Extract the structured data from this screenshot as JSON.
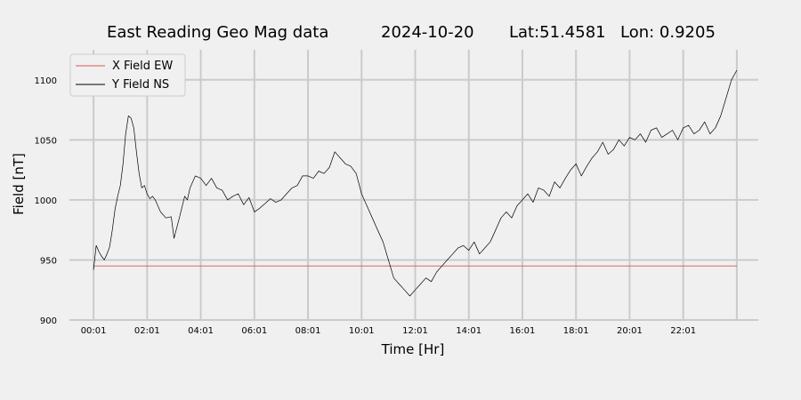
{
  "chart_data": {
    "type": "line",
    "title_parts": [
      "East Reading Geo Mag data",
      "2024-10-20",
      "Lat:51.4581",
      "Lon: 0.9205"
    ],
    "xlabel": "Time  [Hr]",
    "ylabel": "Field  [nT]",
    "xlim": [
      -0.9,
      24.8
    ],
    "ylim": [
      900,
      1125
    ],
    "x_ticks": [
      0,
      2,
      4,
      6,
      8,
      10,
      12,
      14,
      16,
      18,
      20,
      22
    ],
    "x_tick_labels": [
      "00:01",
      "02:01",
      "04:01",
      "06:01",
      "08:01",
      "10:01",
      "12:01",
      "14:01",
      "16:01",
      "18:01",
      "20:01",
      "22:01"
    ],
    "y_ticks": [
      900,
      950,
      1000,
      1050,
      1100
    ],
    "y_tick_labels": [
      "900",
      "950",
      "1000",
      "1050",
      "1100"
    ],
    "grid": true,
    "legend_position": "top-left",
    "series": [
      {
        "name": "X Field EW",
        "color": "#d9534f",
        "x": [
          0,
          24
        ],
        "y": [
          945,
          945
        ]
      },
      {
        "name": "Y Field NS",
        "color": "#000000",
        "x": [
          0,
          0.1,
          0.2,
          0.3,
          0.4,
          0.5,
          0.6,
          0.7,
          0.8,
          0.9,
          1.0,
          1.1,
          1.2,
          1.3,
          1.4,
          1.5,
          1.6,
          1.7,
          1.8,
          1.9,
          2.0,
          2.1,
          2.2,
          2.3,
          2.5,
          2.7,
          2.9,
          3.0,
          3.2,
          3.4,
          3.5,
          3.6,
          3.7,
          3.8,
          4.0,
          4.2,
          4.4,
          4.6,
          4.8,
          5.0,
          5.2,
          5.4,
          5.6,
          5.8,
          6.0,
          6.2,
          6.4,
          6.6,
          6.8,
          7.0,
          7.2,
          7.4,
          7.6,
          7.8,
          8.0,
          8.2,
          8.4,
          8.6,
          8.8,
          9.0,
          9.2,
          9.4,
          9.6,
          9.8,
          10.0,
          10.2,
          10.4,
          10.6,
          10.8,
          11.0,
          11.2,
          11.4,
          11.6,
          11.8,
          12.0,
          12.2,
          12.4,
          12.6,
          12.8,
          13.0,
          13.2,
          13.4,
          13.6,
          13.8,
          14.0,
          14.2,
          14.4,
          14.6,
          14.8,
          15.0,
          15.2,
          15.4,
          15.6,
          15.8,
          16.0,
          16.2,
          16.4,
          16.6,
          16.8,
          17.0,
          17.2,
          17.4,
          17.6,
          17.8,
          18.0,
          18.2,
          18.4,
          18.6,
          18.8,
          19.0,
          19.2,
          19.4,
          19.6,
          19.8,
          20.0,
          20.2,
          20.4,
          20.6,
          20.8,
          21.0,
          21.2,
          21.4,
          21.6,
          21.8,
          22.0,
          22.2,
          22.4,
          22.6,
          22.8,
          23.0,
          23.2,
          23.4,
          23.6,
          23.8,
          24.0
        ],
        "y": [
          942,
          962,
          957,
          953,
          950,
          955,
          961,
          975,
          992,
          1003,
          1012,
          1030,
          1055,
          1070,
          1068,
          1060,
          1040,
          1022,
          1010,
          1012,
          1005,
          1001,
          1003,
          1000,
          990,
          985,
          986,
          968,
          985,
          1003,
          1000,
          1010,
          1015,
          1020,
          1018,
          1012,
          1018,
          1010,
          1008,
          1000,
          1003,
          1005,
          996,
          1002,
          990,
          993,
          997,
          1001,
          998,
          1000,
          1005,
          1010,
          1012,
          1020,
          1020,
          1018,
          1024,
          1022,
          1027,
          1040,
          1035,
          1030,
          1028,
          1022,
          1005,
          995,
          985,
          975,
          965,
          950,
          935,
          930,
          925,
          920,
          925,
          930,
          935,
          932,
          940,
          945,
          950,
          955,
          960,
          962,
          958,
          965,
          955,
          960,
          965,
          975,
          985,
          990,
          985,
          995,
          1000,
          1005,
          998,
          1010,
          1008,
          1003,
          1015,
          1010,
          1018,
          1025,
          1030,
          1020,
          1028,
          1035,
          1040,
          1048,
          1038,
          1042,
          1050,
          1045,
          1052,
          1050,
          1055,
          1048,
          1058,
          1060,
          1052,
          1055,
          1058,
          1050,
          1060,
          1062,
          1055,
          1058,
          1065,
          1055,
          1060,
          1070,
          1085,
          1100,
          1108
        ]
      }
    ]
  }
}
